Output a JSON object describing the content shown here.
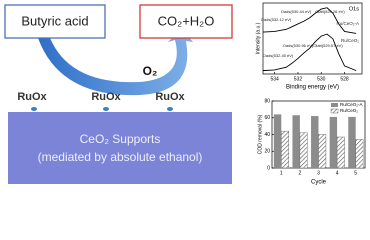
{
  "diagram": {
    "reactant": "Butyric acid",
    "product": "CO₂+H₂O",
    "oxidant": "O₂",
    "sites": [
      "RuOx",
      "RuOx",
      "RuOx"
    ],
    "support": "CeO₂ Supports",
    "support_note": "(mediated by absolute ethanol)"
  },
  "chart_data": [
    {
      "type": "line",
      "title": "O1s",
      "x_label": "Binding energy (eV)",
      "y_label": "Intensity (a.u.)",
      "x": [
        535,
        534,
        533,
        532.5,
        532,
        531.5,
        531,
        530.5,
        530,
        529.5,
        529,
        528.5,
        528,
        527
      ],
      "xlim": [
        535,
        526.5
      ],
      "xticks": [
        534,
        532,
        530,
        528
      ],
      "ylim": [
        0,
        10.5
      ],
      "series": [
        {
          "name": "Ru/CeO₂-A",
          "color": "#000000",
          "values": [
            6.2,
            6.3,
            6.6,
            7.0,
            7.4,
            7.8,
            8.3,
            9.0,
            9.6,
            9.8,
            9.0,
            7.4,
            6.3,
            6.0
          ]
        },
        {
          "name": "Ru/CeO₂",
          "color": "#000000",
          "values": [
            0.5,
            0.6,
            1.0,
            1.6,
            2.3,
            3.1,
            3.8,
            4.8,
            5.6,
            5.9,
            5.2,
            3.0,
            1.2,
            0.5
          ]
        }
      ],
      "annotations": [
        "Oads(530.44 eV)",
        "Olatt(529.26 eV)",
        "Oads(532.12 eV)",
        "Oads(530.96 eV)",
        "Olatt(529.57 eV)",
        "Oads(532.45 eV)"
      ]
    },
    {
      "type": "bar",
      "x_label": "Cycle",
      "y_label": "COD removal (%)",
      "categories": [
        "1",
        "2",
        "3",
        "4",
        "5"
      ],
      "ylim": [
        0,
        80
      ],
      "yticks": [
        0,
        20,
        40,
        60,
        80
      ],
      "legend": "upper right",
      "series": [
        {
          "name": "Ru/CeO₂-A",
          "color": "#8c8c8c",
          "values": [
            64,
            63,
            62,
            61,
            61
          ]
        },
        {
          "name": "Ru/CeO₂",
          "color": "#555555",
          "hatch": true,
          "values": [
            44,
            42,
            40,
            37,
            34
          ]
        }
      ]
    }
  ]
}
